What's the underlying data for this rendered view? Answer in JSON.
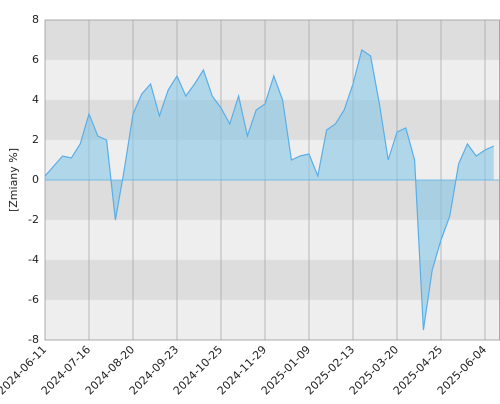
{
  "chart_data": {
    "type": "area",
    "y_label": "[Zmiany %]",
    "categories": [
      "2024-06-11",
      null,
      null,
      null,
      null,
      "2024-07-16",
      null,
      null,
      null,
      null,
      "2024-08-20",
      null,
      null,
      null,
      null,
      "2024-09-23",
      null,
      null,
      null,
      null,
      "2024-10-25",
      null,
      null,
      null,
      null,
      "2024-11-29",
      null,
      null,
      null,
      null,
      "2025-01-09",
      null,
      null,
      null,
      null,
      "2025-02-13",
      null,
      null,
      null,
      null,
      "2025-03-20",
      null,
      null,
      null,
      null,
      "2025-04-25",
      null,
      null,
      null,
      null,
      "2025-06-04",
      null
    ],
    "series": [
      {
        "color": "#5aaee8",
        "values": [
          0.2,
          0.7,
          1.2,
          1.1,
          1.8,
          3.3,
          2.2,
          2.0,
          -2.0,
          0.5,
          3.3,
          4.3,
          4.8,
          3.2,
          4.5,
          5.2,
          4.2,
          4.8,
          5.5,
          4.2,
          3.6,
          2.8,
          4.2,
          2.2,
          3.5,
          3.8,
          5.2,
          4.0,
          1.0,
          1.2,
          1.3,
          0.2,
          2.5,
          2.8,
          3.5,
          4.8,
          6.5,
          6.2,
          3.8,
          1.0,
          2.4,
          2.6,
          1.0,
          -7.5,
          -4.5,
          -3.0,
          -1.8,
          0.8,
          1.8,
          1.2,
          1.5,
          1.7
        ]
      }
    ],
    "ylim": [
      -8,
      8
    ],
    "yticks": [
      -8,
      -6,
      -4,
      -2,
      0,
      2,
      4,
      6,
      8
    ],
    "grid": true,
    "bands": true
  }
}
